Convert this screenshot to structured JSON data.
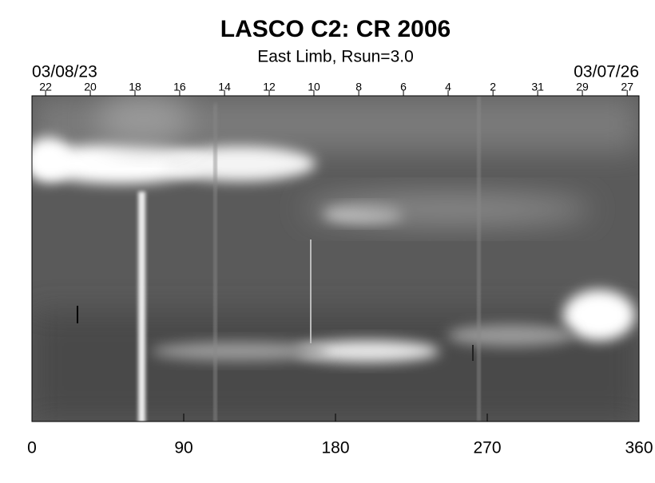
{
  "chart_data": {
    "type": "image",
    "title": "LASCO C2: CR 2006",
    "subtitle": "East Limb, Rsun=3.0",
    "start_date": "03/08/23",
    "end_date": "03/07/26",
    "xlim": [
      0,
      360
    ],
    "xticks": [
      0,
      90,
      180,
      270,
      360
    ],
    "x2ticks": [
      {
        "value": 8.1,
        "label": "22"
      },
      {
        "value": 34.6,
        "label": "20"
      },
      {
        "value": 61.1,
        "label": "18"
      },
      {
        "value": 87.6,
        "label": "16"
      },
      {
        "value": 114.2,
        "label": "14"
      },
      {
        "value": 140.7,
        "label": "12"
      },
      {
        "value": 167.2,
        "label": "10"
      },
      {
        "value": 193.8,
        "label": "8"
      },
      {
        "value": 220.3,
        "label": "6"
      },
      {
        "value": 246.8,
        "label": "4"
      },
      {
        "value": 273.4,
        "label": "2"
      },
      {
        "value": 299.9,
        "label": "31"
      },
      {
        "value": 326.4,
        "label": "29"
      },
      {
        "value": 353.0,
        "label": "27"
      }
    ]
  }
}
